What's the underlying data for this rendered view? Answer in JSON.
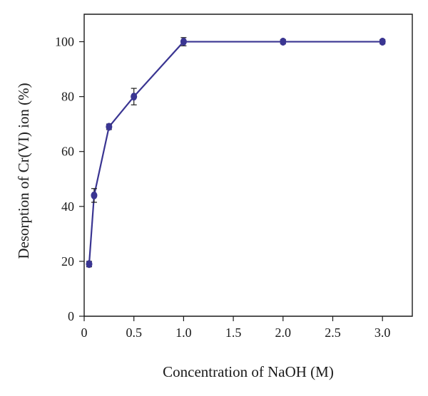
{
  "chart_data": {
    "type": "line",
    "xlabel": "Concentration of NaOH (M)",
    "ylabel": "Desorption of Cr(VI) ion (%)",
    "xlim": [
      0,
      3.3
    ],
    "ylim": [
      0,
      110
    ],
    "x_ticks": [
      "0",
      "0.5",
      "1.0",
      "1.5",
      "2.0",
      "2.5",
      "3.0"
    ],
    "x_tick_values": [
      0,
      0.5,
      1.0,
      1.5,
      2.0,
      2.5,
      3.0
    ],
    "y_ticks": [
      "0",
      "20",
      "40",
      "60",
      "80",
      "100"
    ],
    "y_tick_values": [
      0,
      20,
      40,
      60,
      80,
      100
    ],
    "grid": false,
    "legend": "none",
    "series": [
      {
        "color": "#3a3592",
        "x": [
          0.05,
          0.1,
          0.25,
          0.5,
          1.0,
          2.0,
          3.0
        ],
        "y": [
          19,
          44,
          69,
          80,
          100,
          100,
          100
        ],
        "error": [
          1,
          2.5,
          1,
          3,
          1.5,
          0.8,
          0.8
        ]
      }
    ]
  }
}
